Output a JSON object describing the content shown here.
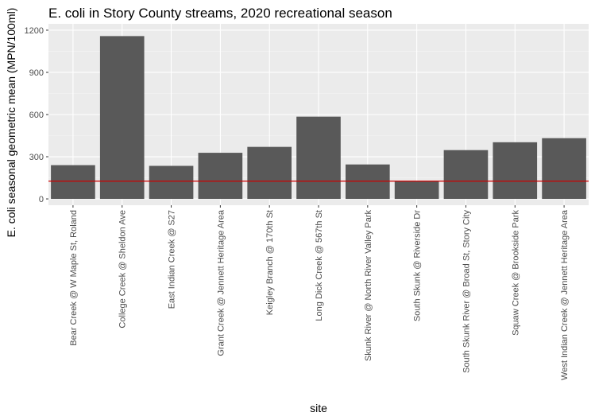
{
  "chart_data": {
    "type": "bar",
    "title": "E. coli in Story County streams, 2020 recreational season",
    "xlabel": "site",
    "ylabel": "E. coli seasonal geometric mean (MPN/100ml)",
    "ylim": [
      -45,
      1245
    ],
    "yticks": [
      0,
      300,
      600,
      900,
      1200
    ],
    "categories": [
      "Bear Creek @ W Maple St, Roland",
      "College Creek @ Sheldon Ave",
      "East Indian Creek @ S27",
      "Grant Creek @ Jennett Heritage Area",
      "Keigley Branch @ 170th St",
      "Long Dick Creek @ 567th St",
      "Skunk River @ North River Valley Park",
      "South Skunk @ Riverside Dr",
      "South Skunk River @ Broad St, Story City",
      "Squaw Creek @ Brookside Park",
      "West Indian Creek @ Jennett Heritage Area"
    ],
    "values": [
      240,
      1158,
      235,
      328,
      370,
      585,
      245,
      128,
      347,
      403,
      432
    ],
    "reference_line": 126,
    "grid": true,
    "colors": {
      "bar": "#595959",
      "panel": "#ebebeb",
      "grid_major": "#ffffff",
      "reference_line": "#cc0000",
      "tick_text": "#4d4d4d",
      "tick_mark": "#333333"
    }
  }
}
